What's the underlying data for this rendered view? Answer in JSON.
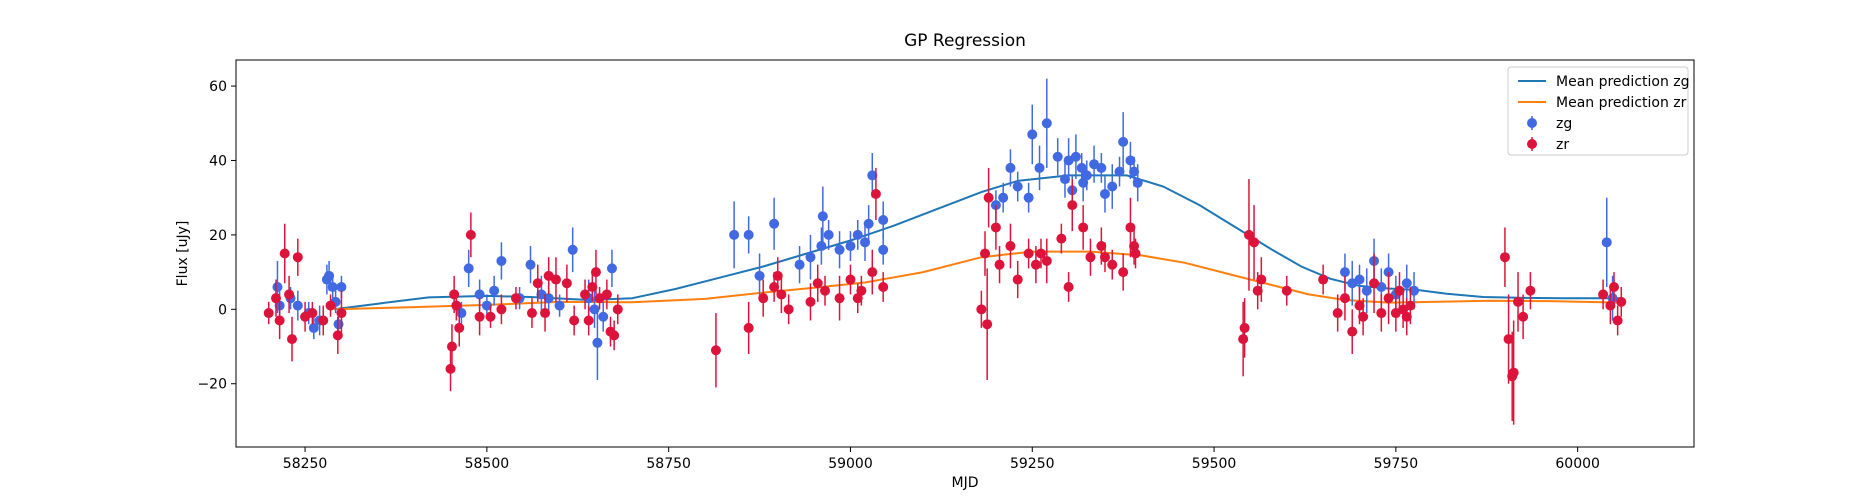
{
  "chart_data": {
    "type": "scatter",
    "title": "GP Regression",
    "xlabel": "MJD",
    "ylabel": "Flux [uJy]",
    "xlim": [
      58155,
      60160
    ],
    "ylim": [
      -37,
      67
    ],
    "x_ticks": [
      58250,
      58500,
      58750,
      59000,
      59250,
      59500,
      59750,
      60000
    ],
    "y_ticks": [
      -20,
      0,
      20,
      40,
      60
    ],
    "grid": false,
    "legend_position": "top-right",
    "legend": [
      {
        "label": "Mean prediction zg",
        "kind": "line",
        "color": "#1f77b4"
      },
      {
        "label": "Mean prediction zr",
        "kind": "line",
        "color": "#ff7f0e"
      },
      {
        "label": "zg",
        "kind": "errorbar",
        "color": "#4169e1"
      },
      {
        "label": "zr",
        "kind": "errorbar",
        "color": "#dc143c"
      }
    ],
    "series": [
      {
        "name": "Mean prediction zg",
        "kind": "line",
        "color": "#1f77b4",
        "points": [
          [
            58290,
            0
          ],
          [
            58350,
            1.5
          ],
          [
            58420,
            3.2
          ],
          [
            58500,
            3.6
          ],
          [
            58560,
            3.3
          ],
          [
            58640,
            2.5
          ],
          [
            58700,
            3.0
          ],
          [
            58760,
            5.5
          ],
          [
            58820,
            8.5
          ],
          [
            58880,
            11.5
          ],
          [
            58940,
            15
          ],
          [
            59000,
            18.5
          ],
          [
            59060,
            22.5
          ],
          [
            59120,
            27
          ],
          [
            59180,
            31.5
          ],
          [
            59230,
            34.5
          ],
          [
            59300,
            36
          ],
          [
            59380,
            36
          ],
          [
            59430,
            33
          ],
          [
            59480,
            28
          ],
          [
            59530,
            22
          ],
          [
            59580,
            16
          ],
          [
            59620,
            11.5
          ],
          [
            59660,
            8.2
          ],
          [
            59700,
            6.3
          ],
          [
            59740,
            5.6
          ],
          [
            59780,
            5.2
          ],
          [
            59820,
            4.2
          ],
          [
            59870,
            3.3
          ],
          [
            59920,
            3.1
          ],
          [
            59980,
            3.0
          ],
          [
            60060,
            3.0
          ]
        ]
      },
      {
        "name": "Mean prediction zr",
        "kind": "line",
        "color": "#ff7f0e",
        "points": [
          [
            58290,
            0
          ],
          [
            58400,
            0.6
          ],
          [
            58500,
            1.2
          ],
          [
            58600,
            2.0
          ],
          [
            58700,
            1.9
          ],
          [
            58800,
            2.8
          ],
          [
            58880,
            4.5
          ],
          [
            58950,
            5.8
          ],
          [
            59020,
            7.2
          ],
          [
            59100,
            10
          ],
          [
            59180,
            14
          ],
          [
            59250,
            15.5
          ],
          [
            59330,
            15.5
          ],
          [
            59400,
            14.5
          ],
          [
            59460,
            12.5
          ],
          [
            59520,
            9.5
          ],
          [
            59580,
            6.5
          ],
          [
            59630,
            4.0
          ],
          [
            59680,
            2.5
          ],
          [
            59740,
            1.8
          ],
          [
            59800,
            2.0
          ],
          [
            59880,
            2.3
          ],
          [
            59960,
            2.2
          ],
          [
            60060,
            1.8
          ]
        ]
      },
      {
        "name": "zg",
        "kind": "errorbar",
        "color": "#4169e1",
        "points": [
          [
            58212,
            6,
            7
          ],
          [
            58215,
            1,
            4
          ],
          [
            58230,
            3,
            3
          ],
          [
            58240,
            1,
            4
          ],
          [
            58255,
            -1,
            3
          ],
          [
            58262,
            -5,
            3
          ],
          [
            58270,
            -3,
            4
          ],
          [
            58280,
            8,
            4
          ],
          [
            58283,
            9,
            4
          ],
          [
            58288,
            6,
            3
          ],
          [
            58292,
            2,
            3
          ],
          [
            58296,
            -4,
            3
          ],
          [
            58300,
            6,
            3
          ],
          [
            58465,
            -1,
            3
          ],
          [
            58475,
            11,
            5
          ],
          [
            58490,
            4,
            4
          ],
          [
            58500,
            1,
            3
          ],
          [
            58510,
            5,
            4
          ],
          [
            58520,
            13,
            5
          ],
          [
            58545,
            3,
            3
          ],
          [
            58560,
            12,
            5
          ],
          [
            58575,
            4,
            5
          ],
          [
            58585,
            3,
            4
          ],
          [
            58600,
            1,
            3
          ],
          [
            58618,
            16,
            6
          ],
          [
            58640,
            3,
            5
          ],
          [
            58648,
            0,
            5
          ],
          [
            58652,
            -9,
            10
          ],
          [
            58660,
            -2,
            4
          ],
          [
            58672,
            11,
            5
          ],
          [
            58840,
            20,
            9
          ],
          [
            58860,
            20,
            5
          ],
          [
            58875,
            9,
            6
          ],
          [
            58895,
            23,
            7
          ],
          [
            58930,
            12,
            5
          ],
          [
            58945,
            14,
            6
          ],
          [
            58960,
            17,
            5
          ],
          [
            58962,
            25,
            8
          ],
          [
            58970,
            20,
            4
          ],
          [
            58985,
            16,
            5
          ],
          [
            59000,
            17,
            4
          ],
          [
            59010,
            20,
            4
          ],
          [
            59020,
            18,
            5
          ],
          [
            59025,
            23,
            5
          ],
          [
            59030,
            36,
            6
          ],
          [
            59045,
            24,
            5
          ],
          [
            59045,
            16,
            4
          ],
          [
            59200,
            28,
            4
          ],
          [
            59210,
            30,
            4
          ],
          [
            59220,
            38,
            5
          ],
          [
            59230,
            33,
            4
          ],
          [
            59245,
            30,
            4
          ],
          [
            59250,
            47,
            8
          ],
          [
            59260,
            38,
            6
          ],
          [
            59270,
            50,
            12
          ],
          [
            59285,
            41,
            5
          ],
          [
            59295,
            35,
            5
          ],
          [
            59300,
            40,
            6
          ],
          [
            59305,
            32,
            4
          ],
          [
            59310,
            41,
            6
          ],
          [
            59318,
            38,
            4
          ],
          [
            59320,
            34,
            5
          ],
          [
            59325,
            36,
            4
          ],
          [
            59335,
            39,
            5
          ],
          [
            59345,
            38,
            4
          ],
          [
            59350,
            31,
            5
          ],
          [
            59360,
            33,
            6
          ],
          [
            59370,
            37,
            4
          ],
          [
            59375,
            45,
            8
          ],
          [
            59385,
            40,
            5
          ],
          [
            59390,
            37,
            4
          ],
          [
            59395,
            34,
            5
          ],
          [
            59680,
            10,
            5
          ],
          [
            59690,
            7,
            6
          ],
          [
            59700,
            8,
            4
          ],
          [
            59710,
            5,
            6
          ],
          [
            59720,
            13,
            6
          ],
          [
            59730,
            6,
            5
          ],
          [
            59740,
            10,
            5
          ],
          [
            59750,
            4,
            5
          ],
          [
            59765,
            7,
            5
          ],
          [
            59775,
            5,
            5
          ],
          [
            60040,
            18,
            12
          ],
          [
            60048,
            3,
            6
          ]
        ]
      },
      {
        "name": "zr",
        "kind": "errorbar",
        "color": "#dc143c",
        "points": [
          [
            58200,
            -1,
            3
          ],
          [
            58210,
            3,
            5
          ],
          [
            58215,
            -3,
            5
          ],
          [
            58222,
            15,
            8
          ],
          [
            58228,
            4,
            5
          ],
          [
            58232,
            -8,
            6
          ],
          [
            58240,
            14,
            5
          ],
          [
            58250,
            -2,
            4
          ],
          [
            58260,
            -1,
            3
          ],
          [
            58275,
            -3,
            4
          ],
          [
            58285,
            1,
            3
          ],
          [
            58295,
            -7,
            5
          ],
          [
            58300,
            -1,
            6
          ],
          [
            58450,
            -16,
            6
          ],
          [
            58452,
            -10,
            6
          ],
          [
            58455,
            4,
            5
          ],
          [
            58458,
            1,
            4
          ],
          [
            58462,
            -5,
            5
          ],
          [
            58478,
            20,
            6
          ],
          [
            58490,
            -2,
            5
          ],
          [
            58505,
            -2,
            3
          ],
          [
            58520,
            0,
            4
          ],
          [
            58540,
            3,
            3
          ],
          [
            58562,
            -1,
            4
          ],
          [
            58570,
            7,
            5
          ],
          [
            58580,
            -1,
            5
          ],
          [
            58585,
            9,
            5
          ],
          [
            58595,
            8,
            6
          ],
          [
            58610,
            7,
            5
          ],
          [
            58620,
            -3,
            4
          ],
          [
            58635,
            4,
            4
          ],
          [
            58640,
            -3,
            4
          ],
          [
            58645,
            6,
            4
          ],
          [
            58650,
            10,
            6
          ],
          [
            58655,
            3,
            3
          ],
          [
            58665,
            4,
            4
          ],
          [
            58670,
            -6,
            4
          ],
          [
            58675,
            -7,
            4
          ],
          [
            58680,
            0,
            4
          ],
          [
            58815,
            -11,
            10
          ],
          [
            58860,
            -5,
            7
          ],
          [
            58880,
            3,
            5
          ],
          [
            58895,
            6,
            4
          ],
          [
            58900,
            9,
            5
          ],
          [
            58905,
            4,
            5
          ],
          [
            58915,
            0,
            4
          ],
          [
            58945,
            2,
            5
          ],
          [
            58955,
            7,
            5
          ],
          [
            58965,
            5,
            4
          ],
          [
            58985,
            3,
            6
          ],
          [
            59000,
            8,
            4
          ],
          [
            59010,
            3,
            4
          ],
          [
            59015,
            5,
            4
          ],
          [
            59030,
            10,
            6
          ],
          [
            59035,
            31,
            7
          ],
          [
            59045,
            6,
            4
          ],
          [
            59180,
            0,
            5
          ],
          [
            59185,
            15,
            6
          ],
          [
            59188,
            -4,
            15
          ],
          [
            59190,
            30,
            8
          ],
          [
            59200,
            22,
            6
          ],
          [
            59205,
            12,
            5
          ],
          [
            59220,
            17,
            6
          ],
          [
            59230,
            8,
            5
          ],
          [
            59245,
            15,
            4
          ],
          [
            59255,
            12,
            5
          ],
          [
            59262,
            15,
            4
          ],
          [
            59270,
            13,
            6
          ],
          [
            59290,
            19,
            4
          ],
          [
            59300,
            6,
            4
          ],
          [
            59305,
            28,
            7
          ],
          [
            59320,
            22,
            6
          ],
          [
            59330,
            14,
            5
          ],
          [
            59345,
            17,
            5
          ],
          [
            59350,
            14,
            4
          ],
          [
            59360,
            12,
            4
          ],
          [
            59375,
            10,
            5
          ],
          [
            59385,
            22,
            8
          ],
          [
            59390,
            17,
            5
          ],
          [
            59392,
            15,
            4
          ],
          [
            59540,
            -8,
            10
          ],
          [
            59542,
            -5,
            8
          ],
          [
            59548,
            20,
            15
          ],
          [
            59555,
            18,
            10
          ],
          [
            59560,
            5,
            5
          ],
          [
            59565,
            8,
            6
          ],
          [
            59600,
            5,
            4
          ],
          [
            59650,
            8,
            4
          ],
          [
            59670,
            -1,
            5
          ],
          [
            59680,
            3,
            6
          ],
          [
            59690,
            -6,
            6
          ],
          [
            59700,
            1,
            5
          ],
          [
            59705,
            -2,
            5
          ],
          [
            59720,
            7,
            8
          ],
          [
            59730,
            -1,
            5
          ],
          [
            59740,
            3,
            7
          ],
          [
            59750,
            -1,
            5
          ],
          [
            59755,
            5,
            5
          ],
          [
            59760,
            0,
            5
          ],
          [
            59765,
            -2,
            5
          ],
          [
            59770,
            1,
            5
          ],
          [
            59900,
            14,
            8
          ],
          [
            59905,
            -8,
            12
          ],
          [
            59910,
            -18,
            12
          ],
          [
            59912,
            -17,
            14
          ],
          [
            59918,
            2,
            8
          ],
          [
            59925,
            -2,
            6
          ],
          [
            59935,
            5,
            5
          ],
          [
            60035,
            4,
            4
          ],
          [
            60045,
            1,
            5
          ],
          [
            60050,
            6,
            4
          ],
          [
            60055,
            -3,
            4
          ],
          [
            60060,
            2,
            4
          ]
        ]
      }
    ]
  }
}
